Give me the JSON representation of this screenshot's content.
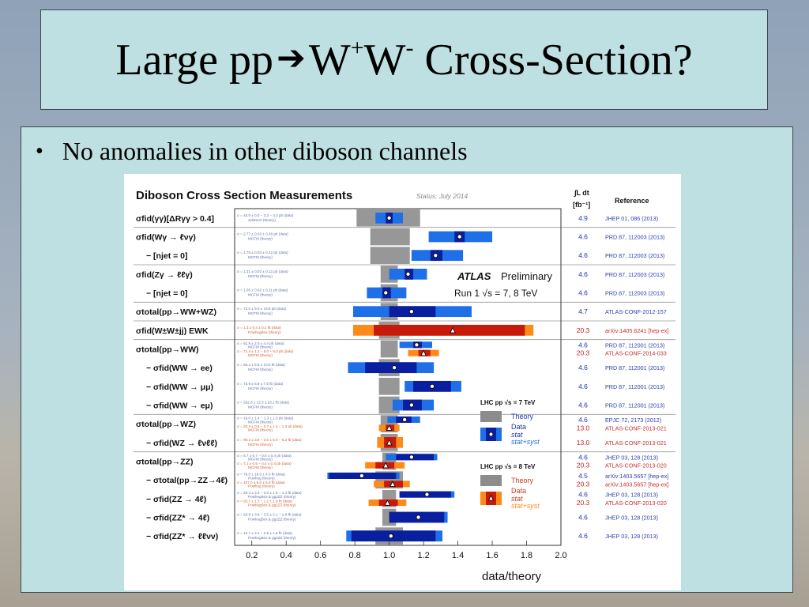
{
  "slide": {
    "title_prefix": "Large pp",
    "title_w1": "W",
    "title_w1_sup": "+",
    "title_w2": "W",
    "title_w2_sup": "-",
    "title_suffix": "Cross-Section?",
    "bullet": "No anomalies in other diboson channels"
  },
  "figure": {
    "title": "Diboson Cross Section Measurements",
    "status": "Status: July 2014",
    "lumi_header_1": "∫L dt",
    "lumi_header_2": "[fb⁻¹]",
    "reference_header": "Reference",
    "atlas": "ATLAS",
    "preliminary": "Preliminary",
    "run_label": "Run 1   √s = 7, 8 TeV",
    "xlabel": "data/theory",
    "colors": {
      "blue_syst": "#1e6fe8",
      "blue_stat": "#0a1fa0",
      "orange_syst": "#ff8a1a",
      "red_stat": "#c81a0a",
      "theory_grey": "#8c8c8c",
      "lumi7": "#2030c0",
      "lumi8": "#c82020",
      "ref_blue": "#3040b0",
      "ref_red": "#c83030"
    },
    "legend": {
      "lhc7": "LHC pp  √s = 7 TeV",
      "lhc8": "LHC pp  √s = 8 TeV",
      "theory": "Theory",
      "data": "Data",
      "stat": "stat",
      "statsyst": "stat+syst"
    }
  },
  "chart_data": {
    "type": "scatter",
    "xlabel": "data/theory",
    "xlim": [
      0.1,
      2.0
    ],
    "xticks": [
      "0.2",
      "0.4",
      "0.6",
      "0.8",
      "1.0",
      "1.2",
      "1.4",
      "1.6",
      "1.8",
      "2.0"
    ],
    "rows": [
      {
        "label": "σfid(γγ)[ΔRγγ > 0.4]",
        "sub": false,
        "sep": true,
        "entries": [
          {
            "energy": 7,
            "val": 1.0,
            "stat": [
              0.98,
              1.02
            ],
            "syst": [
              0.92,
              1.08
            ],
            "theory": [
              0.81,
              1.18
            ],
            "note": "σ = 44.0 ± 0.0 − 3.2 − 4.2 pb (data) / 2γNNLO (theory)",
            "lumi": "4.9",
            "ref": "JHEP 01, 086 (2013)"
          }
        ]
      },
      {
        "label": "σfid(Wγ → ℓνγ)",
        "sub": false,
        "sep": false,
        "entries": [
          {
            "energy": 7,
            "val": 1.41,
            "stat": [
              1.38,
              1.44
            ],
            "syst": [
              1.23,
              1.6
            ],
            "theory": [
              0.89,
              1.12
            ],
            "note": "σ = 2.77 ± 0.03 ± 0.36 pb (data) / MCFM (theory)",
            "lumi": "4.6",
            "ref": "PRD 87, 112003 (2013)"
          }
        ]
      },
      {
        "label": "− [njet = 0]",
        "sub": true,
        "sep": true,
        "entries": [
          {
            "energy": 7,
            "val": 1.27,
            "stat": [
              1.24,
              1.31
            ],
            "syst": [
              1.13,
              1.43
            ],
            "theory": [
              0.89,
              1.12
            ],
            "note": "σ = 1.76 ± 0.03 ± 0.22 pb (data) / MCFM (theory)",
            "lumi": "4.6",
            "ref": "PRD 87, 112003 (2013)"
          }
        ]
      },
      {
        "label": "σfid(Zγ → ℓℓγ)",
        "sub": false,
        "sep": false,
        "entries": [
          {
            "energy": 7,
            "val": 1.11,
            "stat": [
              1.09,
              1.14
            ],
            "syst": [
              1.0,
              1.22
            ],
            "theory": [
              0.95,
              1.05
            ],
            "note": "σ = 1.31 ± 0.02 ± 0.12 pb (data) / MCFM (theory)",
            "lumi": "4.6",
            "ref": "PRD 87, 112003 (2013)"
          }
        ]
      },
      {
        "label": "− [njet = 0]",
        "sub": true,
        "sep": true,
        "entries": [
          {
            "energy": 7,
            "val": 0.98,
            "stat": [
              0.96,
              1.01
            ],
            "syst": [
              0.87,
              1.1
            ],
            "theory": [
              0.95,
              1.05
            ],
            "note": "σ = 1.05 ± 0.02 ± 0.11 pb (data) / MCFM (theory)",
            "lumi": "4.6",
            "ref": "PRD 87, 112003 (2013)"
          }
        ]
      },
      {
        "label": "σtotal(pp→WW+WZ)",
        "sub": false,
        "sep": true,
        "entries": [
          {
            "energy": 7,
            "val": 1.13,
            "stat": [
              1.0,
              1.27
            ],
            "syst": [
              0.79,
              1.48
            ],
            "theory": [
              0.95,
              1.05
            ],
            "note": "σ = 72.0 ± 9.0 ± 19.8 pb (data) / MCFM (theory)",
            "lumi": "4.7",
            "ref": "ATLAS-CONF-2012-157"
          }
        ]
      },
      {
        "label": "σfid(W±W±jj) EWK",
        "sub": false,
        "sep": true,
        "entries": [
          {
            "energy": 8,
            "val": 1.37,
            "stat": [
              0.91,
              1.79
            ],
            "syst": [
              0.79,
              1.84
            ],
            "theory": [
              0.94,
              1.06
            ],
            "note": "σ = 1.3 ± 0.4 ± 0.2 fb (data) / PowhegBox (theory)",
            "lumi": "20.3",
            "ref": "arXiv:1405.6241 [hep-ex]"
          }
        ]
      },
      {
        "label": "σtotal(pp→WW)",
        "sub": false,
        "sep": false,
        "entries": [
          {
            "energy": 7,
            "val": 1.16,
            "stat": [
              1.14,
              1.19
            ],
            "syst": [
              1.06,
              1.25
            ],
            "theory": [
              0.95,
              1.05
            ],
            "note": "σ = 51.9 ± 2.0 ± 4.4 pb (data) / MCFM (theory)",
            "lumi": "4.6",
            "ref": "PRD 87, 112001 (2013)"
          },
          {
            "energy": 8,
            "val": 1.2,
            "stat": [
              1.17,
              1.24
            ],
            "syst": [
              1.11,
              1.29
            ],
            "theory": [
              0.95,
              1.05
            ],
            "note": "σ = 71.4 ± 1.2 − 5.0 + 5.0 pb (data) / MCFM (theory)",
            "lumi": "20.3",
            "ref": "ATLAS-CONF-2014-033"
          }
        ]
      },
      {
        "label": "− σfid(WW → ee)",
        "sub": true,
        "sep": false,
        "entries": [
          {
            "energy": 7,
            "val": 1.03,
            "stat": [
              0.86,
              1.16
            ],
            "syst": [
              0.76,
              1.26
            ],
            "theory": [
              0.94,
              1.06
            ],
            "note": "σ = 56.4 ± 6.8 ± 10.0 fb (data) / MCFM (theory)",
            "lumi": "4.6",
            "ref": "PRD 87, 112001 (2013)"
          }
        ]
      },
      {
        "label": "− σfid(WW → μμ)",
        "sub": true,
        "sep": false,
        "entries": [
          {
            "energy": 7,
            "val": 1.25,
            "stat": [
              1.14,
              1.36
            ],
            "syst": [
              1.09,
              1.42
            ],
            "theory": [
              0.94,
              1.06
            ],
            "note": "σ = 73.9 ± 5.9 ± 7.5 fb (data) / MCFM (theory)",
            "lumi": "4.6",
            "ref": "PRD 87, 112001 (2013)"
          }
        ]
      },
      {
        "label": "− σfid(WW → eμ)",
        "sub": true,
        "sep": true,
        "entries": [
          {
            "energy": 7,
            "val": 1.13,
            "stat": [
              1.08,
              1.19
            ],
            "syst": [
              1.02,
              1.26
            ],
            "theory": [
              0.94,
              1.06
            ],
            "note": "σ = 262.3 ± 12.3 ± 23.1 fb (data) / MCFM (theory)",
            "lumi": "4.6",
            "ref": "PRD 87, 112001 (2013)"
          }
        ]
      },
      {
        "label": "σtotal(pp→WZ)",
        "sub": false,
        "sep": false,
        "entries": [
          {
            "energy": 7,
            "val": 1.09,
            "stat": [
              1.04,
              1.13
            ],
            "syst": [
              0.99,
              1.18
            ],
            "theory": [
              0.95,
              1.05
            ],
            "note": "σ = 19.0 ± 1.4 − 1.3 ± 1.0 pb (data) / MCFM (theory)",
            "lumi": "4.6",
            "ref": "EPJC 72, 2173 (2012)"
          },
          {
            "energy": 8,
            "val": 1.0,
            "stat": [
              0.98,
              1.03
            ],
            "syst": [
              0.94,
              1.06
            ],
            "theory": [
              0.95,
              1.05
            ],
            "note": "σ = 20.3 ± 0.8 − 0.7 ± 1.4 − 1.3 pb (data) / MCFM (theory)",
            "lumi": "13.0",
            "ref": "ATLAS-CONF-2013-021"
          }
        ]
      },
      {
        "label": "− σfid(WZ → ℓνℓℓ)",
        "sub": true,
        "sep": true,
        "entries": [
          {
            "energy": 8,
            "val": 1.0,
            "stat": [
              0.97,
              1.04
            ],
            "syst": [
              0.93,
              1.08
            ],
            "theory": [
              0.95,
              1.05
            ],
            "note": "σ = 99.2 ± 3.8 − 3.0 ± 6.0 − 6.2 fb (data) / MCFM (theory)",
            "lumi": "13.0",
            "ref": "ATLAS-CONF-2013-021"
          }
        ]
      },
      {
        "label": "σtotal(pp→ZZ)",
        "sub": false,
        "sep": false,
        "entries": [
          {
            "energy": 7,
            "val": 1.13,
            "stat": [
              1.04,
              1.26
            ],
            "syst": [
              0.98,
              1.28
            ],
            "theory": [
              0.96,
              1.04
            ],
            "note": "σ = 6.7 ± 0.7 − 0.5 ± 0.4 pb (data) / MCFM (theory)",
            "lumi": "4.6",
            "ref": "JHEP 03, 128 (2013)"
          },
          {
            "energy": 8,
            "val": 0.98,
            "stat": [
              0.92,
              1.03
            ],
            "syst": [
              0.86,
              1.09
            ],
            "theory": [
              0.96,
              1.04
            ],
            "note": "σ = 7.1 ± 0.5 − 0.4 ± 0.4 pb (data) / MCFM (theory)",
            "lumi": "20.3",
            "ref": "ATLAS-CONF-2013-020"
          }
        ]
      },
      {
        "label": "− σtotal(pp→ZZ→4ℓ)",
        "sub": true,
        "sep": false,
        "entries": [
          {
            "energy": 7,
            "val": 0.84,
            "stat": [
              0.65,
              1.04
            ],
            "syst": [
              0.64,
              1.06
            ],
            "theory": [
              0.92,
              1.08
            ],
            "note": "σ = 76.0 ± 18.0 ± 4.0 fb (data) / Powheg (theory)",
            "lumi": "4.5",
            "ref": "arXiv:1403.5657 [hep-ex]"
          },
          {
            "energy": 8,
            "val": 1.02,
            "stat": [
              0.97,
              1.08
            ],
            "syst": [
              0.91,
              1.12
            ],
            "theory": [
              0.92,
              1.08
            ],
            "note": "σ = 107.0 ± 9.0 ± 5.0 fb (data) / Powheg (theory)",
            "lumi": "20.3",
            "ref": "arXiv:1403.5657 [hep-ex]"
          }
        ]
      },
      {
        "label": "− σfid(ZZ → 4ℓ)",
        "sub": true,
        "sep": false,
        "entries": [
          {
            "energy": 7,
            "val": 1.22,
            "stat": [
              1.06,
              1.36
            ],
            "syst": [
              1.06,
              1.38
            ],
            "theory": [
              0.96,
              1.04
            ],
            "note": "σ = 25.4 ± 3.3 − 3.0 ± 1.6 − 1.4 fb (data) / PowhegBox & gg2ZZ (theory)",
            "lumi": "4.6",
            "ref": "JHEP 03, 128 (2013)"
          },
          {
            "energy": 8,
            "val": 0.99,
            "stat": [
              0.94,
              1.05
            ],
            "syst": [
              0.88,
              1.1
            ],
            "theory": [
              0.96,
              1.04
            ],
            "note": "σ = 20.7 ± 1.3 − 1.2 ± 1.0 fb (data) / PowhegBox & gg2ZZ (theory)",
            "lumi": "20.3",
            "ref": "ATLAS-CONF-2013-020"
          }
        ]
      },
      {
        "label": "− σfid(ZZ* → 4ℓ)",
        "sub": true,
        "sep": false,
        "entries": [
          {
            "energy": 7,
            "val": 1.17,
            "stat": [
              1.0,
              1.32
            ],
            "syst": [
              1.0,
              1.34
            ],
            "theory": [
              0.96,
              1.04
            ],
            "note": "σ = 29.8 ± 3.8 − 3.5 ± 2.1 − 1.9 fb (data) / PowhegBox & gg2ZZ (theory)",
            "lumi": "4.6",
            "ref": "JHEP 03, 128 (2013)"
          }
        ]
      },
      {
        "label": "− σfid(ZZ* → ℓℓνν)",
        "sub": true,
        "sep": false,
        "entries": [
          {
            "energy": 7,
            "val": 1.01,
            "stat": [
              0.78,
              1.27
            ],
            "syst": [
              0.75,
              1.31
            ],
            "theory": [
              0.92,
              1.08
            ],
            "note": "σ = 12.7 ± 3.1 − 2.9 ± 1.8 fb (data) / PowhegBox & gg2ZZ (theory)",
            "lumi": "4.6",
            "ref": "JHEP 03, 128 (2013)"
          }
        ]
      }
    ]
  }
}
